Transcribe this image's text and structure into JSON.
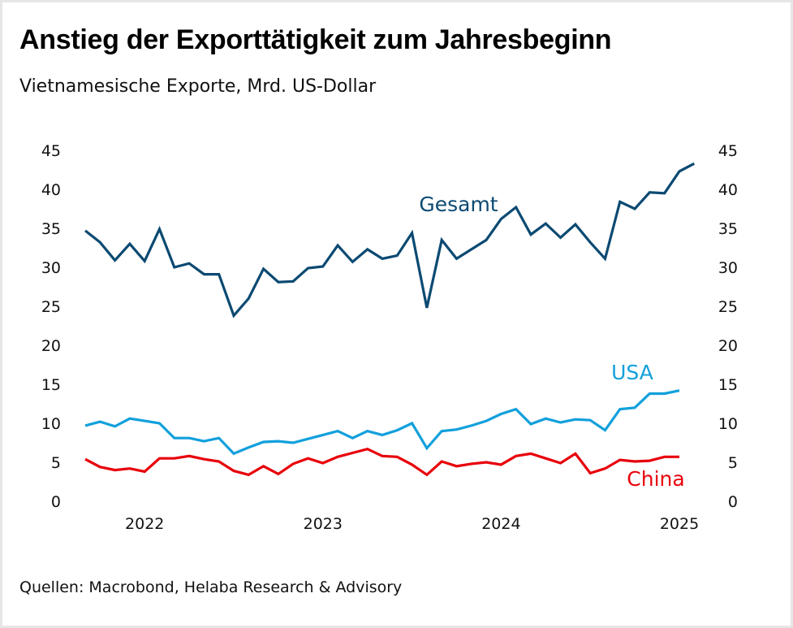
{
  "title": "Anstieg der Exporttätigkeit zum Jahresbeginn",
  "subtitle": "Vietnamesische Exporte, Mrd. US-Dollar",
  "source": "Quellen: Macrobond, Helaba Research & Advisory",
  "chart_data": {
    "type": "line",
    "title": "Anstieg der Exporttätigkeit zum Jahresbeginn",
    "subtitle": "Vietnamesische Exporte, Mrd. US-Dollar",
    "xlabel": "",
    "ylabel": "",
    "ylim": [
      0,
      45
    ],
    "y_ticks": [
      "0",
      "5",
      "10",
      "15",
      "20",
      "25",
      "30",
      "35",
      "40",
      "45"
    ],
    "x_tick_labels": [
      "2022",
      "2023",
      "2024",
      "2025"
    ],
    "x_start": "2021-09",
    "frequency": "monthly",
    "grid": false,
    "legend": "inline labels",
    "series": [
      {
        "name": "Gesamt",
        "color": "#0b4a72",
        "values": [
          34.7,
          33.2,
          30.9,
          33.0,
          30.8,
          34.9,
          30.0,
          30.5,
          29.1,
          29.1,
          23.8,
          26.0,
          29.8,
          28.1,
          28.2,
          29.9,
          30.1,
          32.8,
          30.7,
          32.3,
          31.1,
          31.5,
          34.4,
          24.8,
          33.5,
          31.1,
          32.3,
          33.5,
          36.2,
          37.7,
          34.2,
          35.6,
          33.8,
          35.5,
          33.2,
          31.1,
          38.4,
          37.5,
          39.6,
          39.5,
          42.3,
          43.3
        ]
      },
      {
        "name": "USA",
        "color": "#12a0dc",
        "values": [
          9.7,
          10.2,
          9.6,
          10.6,
          10.3,
          10.0,
          8.1,
          8.1,
          7.7,
          8.1,
          6.1,
          6.9,
          7.6,
          7.7,
          7.5,
          8.0,
          8.5,
          9.0,
          8.1,
          9.0,
          8.5,
          9.1,
          10.0,
          6.8,
          9.0,
          9.2,
          9.7,
          10.3,
          11.2,
          11.8,
          9.9,
          10.6,
          10.1,
          10.5,
          10.4,
          9.1,
          11.8,
          12.0,
          13.8,
          13.8,
          14.2
        ]
      },
      {
        "name": "China",
        "color": "#e8000b",
        "values": [
          5.4,
          4.4,
          4.0,
          4.2,
          3.8,
          5.5,
          5.5,
          5.8,
          5.4,
          5.1,
          3.9,
          3.4,
          4.5,
          3.5,
          4.8,
          5.5,
          4.9,
          5.7,
          6.2,
          6.7,
          5.8,
          5.7,
          4.7,
          3.4,
          5.1,
          4.5,
          4.8,
          5.0,
          4.7,
          5.8,
          6.1,
          5.5,
          4.9,
          6.1,
          3.6,
          4.2,
          5.3,
          5.1,
          5.2,
          5.7,
          5.7
        ]
      }
    ]
  }
}
